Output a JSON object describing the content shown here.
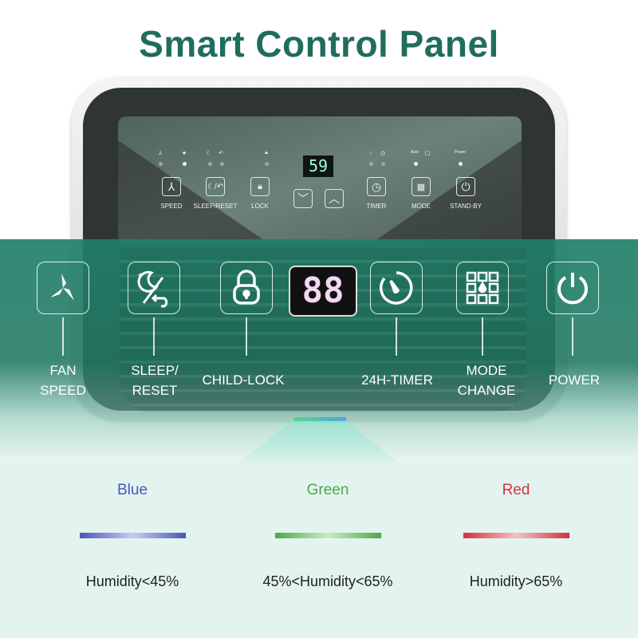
{
  "title": "Smart Control Panel",
  "small_panel": {
    "display": "59",
    "indicators": {
      "speed": [
        "fan",
        "star"
      ],
      "sleep_reset": [
        "sleep",
        "reset"
      ],
      "lock": [
        "lock"
      ],
      "timer": [
        "drop",
        "timer"
      ],
      "mode": [
        "Auto",
        "bucket"
      ],
      "power": [
        "Power"
      ]
    },
    "buttons": [
      {
        "label": "SPEED",
        "icon": "fan-icon"
      },
      {
        "label": "SLEEP/RESET",
        "icon": "sleep-icon"
      },
      {
        "label": "LOCK",
        "icon": "lock-icon"
      },
      {
        "label": "",
        "icon": "chevron-down-icon"
      },
      {
        "label": "",
        "icon": "chevron-up-icon"
      },
      {
        "label": "TIMER",
        "icon": "timer-icon"
      },
      {
        "label": "MODE",
        "icon": "grid-icon"
      },
      {
        "label": "STAND-BY",
        "icon": "power-icon"
      }
    ]
  },
  "callouts": {
    "display": "88",
    "items": [
      {
        "label1": "FAN",
        "label2": "SPEED",
        "icon": "fan-icon"
      },
      {
        "label1": "SLEEP/",
        "label2": "RESET",
        "icon": "sleep-reset-icon"
      },
      {
        "label1": "CHILD-LOCK",
        "label2": "",
        "icon": "lock-icon"
      },
      {
        "label1": "24H-TIMER",
        "label2": "",
        "icon": "timer-icon"
      },
      {
        "label1": "MODE",
        "label2": "CHANGE",
        "icon": "mode-grid-icon"
      },
      {
        "label1": "POWER",
        "label2": "",
        "icon": "power-icon"
      }
    ]
  },
  "legend": [
    {
      "color_name": "Blue",
      "color": "#4a57b8",
      "condition": "Humidity<45%"
    },
    {
      "color_name": "Green",
      "color": "#4ca94a",
      "condition": "45%<Humidity<65%"
    },
    {
      "color_name": "Red",
      "color": "#d0343c",
      "condition": "Humidity>65%"
    }
  ]
}
